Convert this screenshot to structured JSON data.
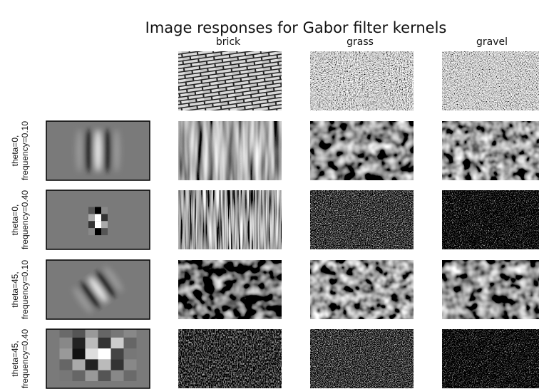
{
  "title": "Image responses for Gabor filter kernels",
  "columns": [
    "brick",
    "grass",
    "gravel"
  ],
  "rows": [
    [
      "theta=0,",
      "frequency=0.10"
    ],
    [
      "theta=0,",
      "frequency=0.40"
    ],
    [
      "theta=45,",
      "frequency=0.10"
    ],
    [
      "theta=45,",
      "frequency=0.40"
    ]
  ]
}
